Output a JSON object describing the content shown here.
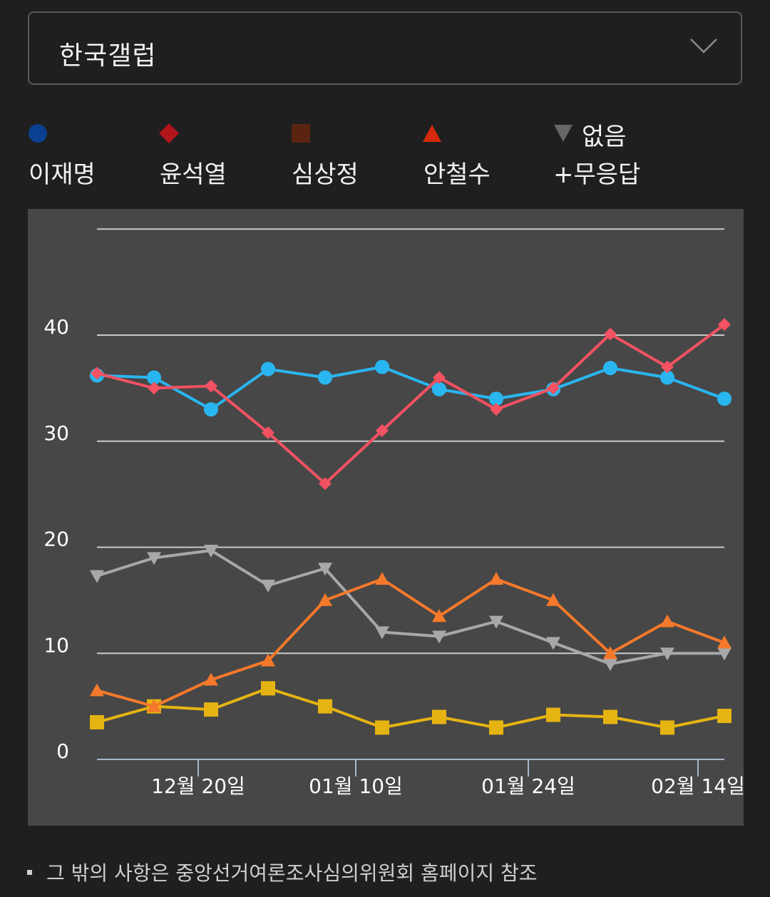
{
  "dropdown": {
    "selected": "한국갤럽"
  },
  "legend": [
    {
      "label": "이재명",
      "color": "#0b3f8f",
      "marker": "circle"
    },
    {
      "label": "윤석열",
      "color": "#b3151c",
      "marker": "diamond"
    },
    {
      "label": "심상정",
      "color": "#5a2410",
      "marker": "square"
    },
    {
      "label": "안철수",
      "color": "#d42a0c",
      "marker": "triangle-up"
    },
    {
      "label": "없음\n+무응답",
      "label_line1": "없음",
      "label_line2": "+무응답",
      "color": "#666666",
      "marker": "triangle-down"
    }
  ],
  "footnote": "그 밖의 사항은 중앙선거여론조사심의위원회 홈페이지 참조",
  "chart_data": {
    "type": "line",
    "ylim": [
      0,
      50
    ],
    "y_ticks": [
      0,
      10,
      20,
      30,
      40
    ],
    "x_tick_labels": [
      "12월 20일",
      "01월 10일",
      "01월 24일",
      "02월 14일"
    ],
    "grid": true,
    "series": [
      {
        "name": "이재명",
        "color": "#29b6f0",
        "marker": "circle",
        "values": [
          36.2,
          36,
          33,
          36.8,
          36,
          37,
          34.9,
          34,
          34.9,
          36.9,
          36,
          34
        ]
      },
      {
        "name": "윤석열",
        "color": "#f25262",
        "marker": "diamond",
        "values": [
          36.4,
          35,
          35.2,
          30.8,
          26,
          31,
          36,
          33,
          35,
          40.1,
          37,
          41
        ]
      },
      {
        "name": "심상정",
        "color": "#e6b412",
        "marker": "square",
        "values": [
          3.5,
          5,
          4.7,
          6.7,
          5,
          3,
          4,
          3,
          4.2,
          4,
          3,
          4.1
        ]
      },
      {
        "name": "안철수",
        "color": "#f5792a",
        "marker": "triangle-up",
        "values": [
          6.5,
          5,
          7.5,
          9.3,
          15,
          17,
          13.5,
          17,
          15,
          10,
          13,
          11
        ]
      },
      {
        "name": "없음+무응답",
        "color": "#a8a8a8",
        "marker": "triangle-down",
        "values": [
          17.3,
          19,
          19.7,
          16.4,
          18,
          12,
          11.6,
          13,
          11,
          9,
          10,
          10
        ]
      }
    ]
  }
}
